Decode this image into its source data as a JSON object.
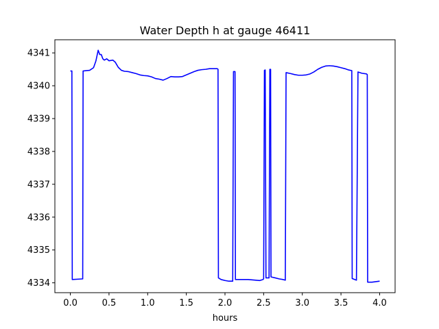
{
  "chart_data": {
    "type": "line",
    "title": "Water Depth h at gauge 46411",
    "xlabel": "hours",
    "ylabel": "",
    "xlim": [
      -0.2,
      4.2
    ],
    "ylim": [
      4333.7,
      4341.4
    ],
    "xticks": [
      0.0,
      0.5,
      1.0,
      1.5,
      2.0,
      2.5,
      3.0,
      3.5,
      4.0
    ],
    "xtick_labels": [
      "0.0",
      "0.5",
      "1.0",
      "1.5",
      "2.0",
      "2.5",
      "3.0",
      "3.5",
      "4.0"
    ],
    "yticks": [
      4334,
      4335,
      4336,
      4337,
      4338,
      4339,
      4340,
      4341
    ],
    "ytick_labels": [
      "4334",
      "4335",
      "4336",
      "4337",
      "4338",
      "4339",
      "4340",
      "4341"
    ],
    "grid": false,
    "series": [
      {
        "color": "#0000ff",
        "x": [
          0.0,
          0.02,
          0.025,
          0.16,
          0.165,
          0.25,
          0.3,
          0.33,
          0.36,
          0.38,
          0.4,
          0.42,
          0.44,
          0.47,
          0.5,
          0.55,
          0.58,
          0.62,
          0.66,
          0.7,
          0.75,
          0.8,
          0.85,
          0.9,
          0.95,
          1.0,
          1.05,
          1.1,
          1.15,
          1.2,
          1.25,
          1.3,
          1.35,
          1.4,
          1.45,
          1.5,
          1.55,
          1.6,
          1.65,
          1.7,
          1.75,
          1.8,
          1.85,
          1.9,
          1.91,
          1.915,
          1.95,
          2.0,
          2.05,
          2.1,
          2.11,
          2.12,
          2.13,
          2.135,
          2.2,
          2.3,
          2.4,
          2.45,
          2.49,
          2.5,
          2.51,
          2.52,
          2.53,
          2.57,
          2.58,
          2.59,
          2.595,
          2.65,
          2.7,
          2.75,
          2.78,
          2.79,
          2.85,
          2.9,
          2.95,
          3.0,
          3.05,
          3.1,
          3.15,
          3.2,
          3.25,
          3.3,
          3.35,
          3.4,
          3.45,
          3.5,
          3.55,
          3.6,
          3.64,
          3.645,
          3.7,
          3.72,
          3.77,
          3.83,
          3.84,
          3.845,
          3.9,
          4.0
        ],
        "y": [
          4340.45,
          4340.45,
          4334.1,
          4334.12,
          4340.45,
          4340.47,
          4340.55,
          4340.75,
          4341.08,
          4340.95,
          4340.95,
          4340.82,
          4340.78,
          4340.82,
          4340.76,
          4340.78,
          4340.72,
          4340.56,
          4340.47,
          4340.44,
          4340.43,
          4340.4,
          4340.37,
          4340.33,
          4340.31,
          4340.3,
          4340.27,
          4340.22,
          4340.2,
          4340.17,
          4340.22,
          4340.28,
          4340.27,
          4340.27,
          4340.28,
          4340.33,
          4340.38,
          4340.43,
          4340.47,
          4340.49,
          4340.5,
          4340.52,
          4340.52,
          4340.52,
          4340.5,
          4334.15,
          4334.1,
          4334.07,
          4334.05,
          4334.05,
          4340.43,
          4340.43,
          4340.43,
          4334.1,
          4334.1,
          4334.1,
          4334.08,
          4334.07,
          4334.1,
          4334.12,
          4340.47,
          4340.48,
          4334.15,
          4334.15,
          4340.5,
          4340.5,
          4334.18,
          4334.15,
          4334.12,
          4334.1,
          4334.08,
          4340.4,
          4340.37,
          4340.34,
          4340.32,
          4340.32,
          4340.33,
          4340.36,
          4340.42,
          4340.5,
          4340.56,
          4340.6,
          4340.61,
          4340.6,
          4340.58,
          4340.55,
          4340.52,
          4340.48,
          4340.46,
          4334.13,
          4334.08,
          4340.42,
          4340.38,
          4340.36,
          4340.34,
          4334.02,
          4334.02,
          4334.05
        ]
      }
    ]
  }
}
